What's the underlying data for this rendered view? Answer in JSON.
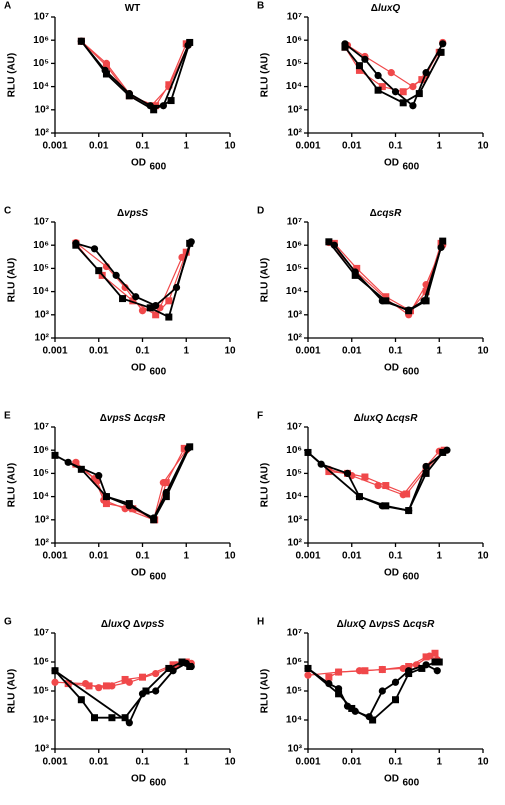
{
  "chart_data": [
    {
      "type": "line",
      "label": "A",
      "title": "WT",
      "y_label": "RLU (AU)",
      "x_label": "OD",
      "x_label_sub": "600",
      "xscale": "log",
      "yscale": "log",
      "xlim": [
        0.001,
        10
      ],
      "ylim": [
        100,
        10000000
      ],
      "xticks": [
        0.001,
        0.01,
        0.1,
        1,
        10
      ],
      "yticks": [
        {
          "value": 100,
          "label": "10²"
        },
        {
          "value": 1000,
          "label": "10³"
        },
        {
          "value": 10000,
          "label": "10⁴"
        },
        {
          "value": 100000,
          "label": "10⁵"
        },
        {
          "value": 1000000,
          "label": "10⁶"
        },
        {
          "value": 10000000,
          "label": "10⁷"
        }
      ],
      "series": [
        {
          "color": "#f0484a",
          "marker": "circle",
          "x": [
            0.004,
            0.015,
            0.05,
            0.16,
            0.4,
            1.1
          ],
          "values": [
            900000,
            100000,
            5000,
            1500,
            10000,
            600000
          ]
        },
        {
          "color": "#f0484a",
          "marker": "square",
          "x": [
            0.004,
            0.015,
            0.05,
            0.2,
            0.4,
            1.0
          ],
          "values": [
            900000,
            80000,
            4000,
            1500,
            12000,
            700000
          ]
        },
        {
          "color": "#000000",
          "marker": "circle",
          "x": [
            0.004,
            0.014,
            0.05,
            0.15,
            0.3,
            1.1
          ],
          "values": [
            900000,
            50000,
            5000,
            1500,
            1500,
            600000
          ]
        },
        {
          "color": "#000000",
          "marker": "square",
          "x": [
            0.004,
            0.015,
            0.05,
            0.18,
            0.45,
            1.2
          ],
          "values": [
            900000,
            35000,
            4000,
            1000,
            2500,
            800000
          ]
        }
      ]
    },
    {
      "type": "line",
      "label": "B",
      "title": "ΔluxQ",
      "y_label": "RLU (AU)",
      "x_label": "OD",
      "x_label_sub": "600",
      "xscale": "log",
      "yscale": "log",
      "xlim": [
        0.001,
        10
      ],
      "ylim": [
        100,
        10000000
      ],
      "xticks": [
        0.001,
        0.01,
        0.1,
        1,
        10
      ],
      "yticks": [
        {
          "value": 100,
          "label": "10²"
        },
        {
          "value": 1000,
          "label": "10³"
        },
        {
          "value": 10000,
          "label": "10⁴"
        },
        {
          "value": 100000,
          "label": "10⁵"
        },
        {
          "value": 1000000,
          "label": "10⁶"
        },
        {
          "value": 10000000,
          "label": "10⁷"
        }
      ],
      "series": [
        {
          "color": "#f0484a",
          "marker": "circle",
          "x": [
            0.008,
            0.02,
            0.08,
            0.25,
            0.5,
            1.2
          ],
          "values": [
            600000,
            200000,
            40000,
            10000,
            30000,
            800000
          ]
        },
        {
          "color": "#f0484a",
          "marker": "square",
          "x": [
            0.007,
            0.015,
            0.05,
            0.15,
            0.4,
            1.0
          ],
          "values": [
            500000,
            50000,
            10000,
            6000,
            20000,
            300000
          ]
        },
        {
          "color": "#000000",
          "marker": "circle",
          "x": [
            0.007,
            0.02,
            0.04,
            0.1,
            0.25,
            0.5,
            1.2
          ],
          "values": [
            700000,
            150000,
            30000,
            6000,
            1500,
            40000,
            700000
          ]
        },
        {
          "color": "#000000",
          "marker": "square",
          "x": [
            0.007,
            0.015,
            0.04,
            0.15,
            0.35,
            1.1
          ],
          "values": [
            500000,
            80000,
            7000,
            2000,
            5000,
            300000
          ]
        }
      ]
    },
    {
      "type": "line",
      "label": "C",
      "title": "ΔvpsS",
      "y_label": "RLU (AU)",
      "x_label": "OD",
      "x_label_sub": "600",
      "xscale": "log",
      "yscale": "log",
      "xlim": [
        0.001,
        10
      ],
      "ylim": [
        100,
        10000000
      ],
      "xticks": [
        0.001,
        0.01,
        0.1,
        1,
        10
      ],
      "yticks": [
        {
          "value": 100,
          "label": "10²"
        },
        {
          "value": 1000,
          "label": "10³"
        },
        {
          "value": 10000,
          "label": "10⁴"
        },
        {
          "value": 100000,
          "label": "10⁵"
        },
        {
          "value": 1000000,
          "label": "10⁶"
        },
        {
          "value": 10000000,
          "label": "10⁷"
        }
      ],
      "series": [
        {
          "color": "#f0484a",
          "marker": "circle",
          "x": [
            0.003,
            0.015,
            0.04,
            0.1,
            0.25,
            0.8
          ],
          "values": [
            1300000,
            120000,
            15000,
            1500,
            2000,
            300000
          ]
        },
        {
          "color": "#f0484a",
          "marker": "square",
          "x": [
            0.003,
            0.012,
            0.06,
            0.2,
            0.4,
            1.0
          ],
          "values": [
            1200000,
            50000,
            4000,
            1000,
            4000,
            500000
          ]
        },
        {
          "color": "#000000",
          "marker": "circle",
          "x": [
            0.003,
            0.008,
            0.025,
            0.07,
            0.2,
            0.6,
            1.3
          ],
          "values": [
            1200000,
            700000,
            50000,
            6000,
            2500,
            15000,
            1400000
          ]
        },
        {
          "color": "#000000",
          "marker": "square",
          "x": [
            0.003,
            0.01,
            0.035,
            0.15,
            0.4,
            1.2
          ],
          "values": [
            1000000,
            80000,
            5000,
            2000,
            800,
            1200000
          ]
        }
      ]
    },
    {
      "type": "line",
      "label": "D",
      "title": "ΔcqsR",
      "y_label": "RLU (AU)",
      "x_label": "OD",
      "x_label_sub": "600",
      "xscale": "log",
      "yscale": "log",
      "xlim": [
        0.001,
        10
      ],
      "ylim": [
        100,
        10000000
      ],
      "xticks": [
        0.001,
        0.01,
        0.1,
        1,
        10
      ],
      "yticks": [
        {
          "value": 100,
          "label": "10²"
        },
        {
          "value": 1000,
          "label": "10³"
        },
        {
          "value": 10000,
          "label": "10⁴"
        },
        {
          "value": 100000,
          "label": "10⁵"
        },
        {
          "value": 1000000,
          "label": "10⁶"
        },
        {
          "value": 10000000,
          "label": "10⁷"
        }
      ],
      "series": [
        {
          "color": "#f0484a",
          "marker": "circle",
          "x": [
            0.003,
            0.012,
            0.06,
            0.2,
            0.5,
            1.2
          ],
          "values": [
            1300000,
            80000,
            5000,
            1000,
            20000,
            1000000
          ]
        },
        {
          "color": "#f0484a",
          "marker": "square",
          "x": [
            0.004,
            0.013,
            0.06,
            0.22,
            0.5,
            1.1
          ],
          "values": [
            1200000,
            100000,
            6000,
            1500,
            10000,
            1200000
          ]
        },
        {
          "color": "#000000",
          "marker": "circle",
          "x": [
            0.004,
            0.012,
            0.05,
            0.2,
            0.45,
            1.1
          ],
          "values": [
            1000000,
            70000,
            4000,
            1600,
            4000,
            800000
          ]
        },
        {
          "color": "#000000",
          "marker": "square",
          "x": [
            0.003,
            0.012,
            0.06,
            0.2,
            0.5,
            1.2
          ],
          "values": [
            1400000,
            50000,
            4000,
            1500,
            4000,
            1500000
          ]
        }
      ]
    },
    {
      "type": "line",
      "label": "E",
      "title": "ΔvpsS ΔcqsR",
      "y_label": "RLU (AU)",
      "x_label": "OD",
      "x_label_sub": "600",
      "xscale": "log",
      "yscale": "log",
      "xlim": [
        0.001,
        10
      ],
      "ylim": [
        100,
        10000000
      ],
      "xticks": [
        0.001,
        0.01,
        0.1,
        1,
        10
      ],
      "yticks": [
        {
          "value": 100,
          "label": "10²"
        },
        {
          "value": 1000,
          "label": "10³"
        },
        {
          "value": 10000,
          "label": "10⁴"
        },
        {
          "value": 100000,
          "label": "10⁵"
        },
        {
          "value": 1000000,
          "label": "10⁶"
        },
        {
          "value": 10000000,
          "label": "10⁷"
        }
      ],
      "series": [
        {
          "color": "#f0484a",
          "marker": "circle",
          "x": [
            0.003,
            0.008,
            0.013,
            0.04,
            0.18,
            0.3,
            1.0
          ],
          "values": [
            300000,
            60000,
            7000,
            3000,
            1000,
            40000,
            1000000
          ]
        },
        {
          "color": "#f0484a",
          "marker": "square",
          "x": [
            0.003,
            0.009,
            0.015,
            0.06,
            0.19,
            0.35,
            0.9
          ],
          "values": [
            250000,
            50000,
            5000,
            3000,
            1000,
            40000,
            1200000
          ]
        },
        {
          "color": "#000000",
          "marker": "circle",
          "x": [
            0.002,
            0.01,
            0.015,
            0.05,
            0.18,
            0.35,
            1.1
          ],
          "values": [
            300000,
            80000,
            10000,
            4000,
            1200,
            15000,
            1200000
          ]
        },
        {
          "color": "#000000",
          "marker": "square",
          "x": [
            0.001,
            0.004,
            0.015,
            0.05,
            0.18,
            0.35,
            1.2
          ],
          "values": [
            600000,
            150000,
            10000,
            5000,
            1000,
            10000,
            1400000
          ]
        }
      ]
    },
    {
      "type": "line",
      "label": "F",
      "title": "ΔluxQ ΔcqsR",
      "y_label": "RLU (AU)",
      "x_label": "OD",
      "x_label_sub": "600",
      "xscale": "log",
      "yscale": "log",
      "xlim": [
        0.001,
        10
      ],
      "ylim": [
        100,
        10000000
      ],
      "xticks": [
        0.001,
        0.01,
        0.1,
        1,
        10
      ],
      "yticks": [
        {
          "value": 100,
          "label": "10²"
        },
        {
          "value": 1000,
          "label": "10³"
        },
        {
          "value": 10000,
          "label": "10⁴"
        },
        {
          "value": 100000,
          "label": "10⁵"
        },
        {
          "value": 1000000,
          "label": "10⁶"
        },
        {
          "value": 10000000,
          "label": "10⁷"
        }
      ],
      "series": [
        {
          "color": "#f0484a",
          "marker": "circle",
          "x": [
            0.003,
            0.01,
            0.04,
            0.15,
            0.5,
            1.0
          ],
          "values": [
            150000,
            80000,
            30000,
            12000,
            200000,
            900000
          ]
        },
        {
          "color": "#f0484a",
          "marker": "square",
          "x": [
            0.003,
            0.008,
            0.02,
            0.06,
            0.18,
            0.5,
            1.3
          ],
          "values": [
            120000,
            100000,
            70000,
            30000,
            13000,
            150000,
            1000000
          ]
        },
        {
          "color": "#000000",
          "marker": "circle",
          "x": [
            0.001,
            0.002,
            0.008,
            0.015,
            0.05,
            0.2,
            0.5,
            1.5
          ],
          "values": [
            800000,
            250000,
            100000,
            10000,
            4000,
            2500,
            200000,
            1000000
          ]
        },
        {
          "color": "#000000",
          "marker": "square",
          "x": [
            0.001,
            0.015,
            0.06,
            0.2,
            0.5,
            1.2
          ],
          "values": [
            800000,
            10000,
            4000,
            2500,
            100000,
            800000
          ]
        }
      ]
    },
    {
      "type": "line",
      "label": "G",
      "title": "ΔluxQ ΔvpsS",
      "y_label": "RLU (AU)",
      "x_label": "OD",
      "x_label_sub": "600",
      "xscale": "log",
      "yscale": "log",
      "xlim": [
        0.001,
        10
      ],
      "ylim": [
        1000,
        10000000
      ],
      "xticks": [
        0.001,
        0.01,
        0.1,
        1,
        10
      ],
      "yticks": [
        {
          "value": 1000,
          "label": "10³"
        },
        {
          "value": 10000,
          "label": "10⁴"
        },
        {
          "value": 100000,
          "label": "10⁵"
        },
        {
          "value": 1000000,
          "label": "10⁶"
        },
        {
          "value": 10000000,
          "label": "10⁷"
        }
      ],
      "series": [
        {
          "color": "#f0484a",
          "marker": "circle",
          "x": [
            0.001,
            0.005,
            0.01,
            0.02,
            0.05,
            0.2,
            0.6,
            1.3
          ],
          "values": [
            200000,
            180000,
            130000,
            150000,
            200000,
            400000,
            800000,
            900000
          ]
        },
        {
          "color": "#f0484a",
          "marker": "square",
          "x": [
            0.002,
            0.006,
            0.015,
            0.04,
            0.1,
            0.5,
            1.0
          ],
          "values": [
            180000,
            150000,
            150000,
            250000,
            300000,
            800000,
            1000000
          ]
        },
        {
          "color": "#000000",
          "marker": "circle",
          "x": [
            0.001,
            0.05,
            0.1,
            0.2,
            0.5,
            1.0,
            1.3
          ],
          "values": [
            500000,
            8000,
            80000,
            100000,
            500000,
            900000,
            700000
          ]
        },
        {
          "color": "#000000",
          "marker": "square",
          "x": [
            0.001,
            0.004,
            0.008,
            0.02,
            0.04,
            0.12,
            0.4,
            0.8,
            1.2
          ],
          "values": [
            500000,
            50000,
            12000,
            12000,
            12000,
            100000,
            600000,
            1000000,
            700000
          ]
        }
      ]
    },
    {
      "type": "line",
      "label": "H",
      "title": "ΔluxQ ΔvpsS ΔcqsR",
      "y_label": "RLU (AU)",
      "x_label": "OD",
      "x_label_sub": "600",
      "xscale": "log",
      "yscale": "log",
      "xlim": [
        0.001,
        10
      ],
      "ylim": [
        1000,
        10000000
      ],
      "xticks": [
        0.001,
        0.01,
        0.1,
        1,
        10
      ],
      "yticks": [
        {
          "value": 1000,
          "label": "10³"
        },
        {
          "value": 10000,
          "label": "10⁴"
        },
        {
          "value": 100000,
          "label": "10⁵"
        },
        {
          "value": 1000000,
          "label": "10⁶"
        },
        {
          "value": 10000000,
          "label": "10⁷"
        }
      ],
      "series": [
        {
          "color": "#f0484a",
          "marker": "circle",
          "x": [
            0.001,
            0.005,
            0.015,
            0.05,
            0.15,
            0.3,
            0.6,
            0.9
          ],
          "values": [
            350000,
            450000,
            500000,
            550000,
            600000,
            800000,
            1600000,
            1200000
          ]
        },
        {
          "color": "#f0484a",
          "marker": "square",
          "x": [
            0.003,
            0.005,
            0.02,
            0.05,
            0.2,
            0.5,
            0.8
          ],
          "values": [
            300000,
            450000,
            500000,
            550000,
            700000,
            1500000,
            2000000
          ]
        },
        {
          "color": "#000000",
          "marker": "circle",
          "x": [
            0.001,
            0.003,
            0.005,
            0.008,
            0.012,
            0.025,
            0.05,
            0.1,
            0.2,
            0.5,
            0.9
          ],
          "values": [
            600000,
            180000,
            120000,
            30000,
            20000,
            13000,
            100000,
            200000,
            500000,
            800000,
            500000
          ]
        },
        {
          "color": "#000000",
          "marker": "square",
          "x": [
            0.001,
            0.005,
            0.01,
            0.03,
            0.1,
            0.2,
            0.4,
            0.8,
            1.0
          ],
          "values": [
            600000,
            80000,
            25000,
            10000,
            50000,
            400000,
            600000,
            1000000,
            1000000
          ]
        }
      ]
    }
  ]
}
